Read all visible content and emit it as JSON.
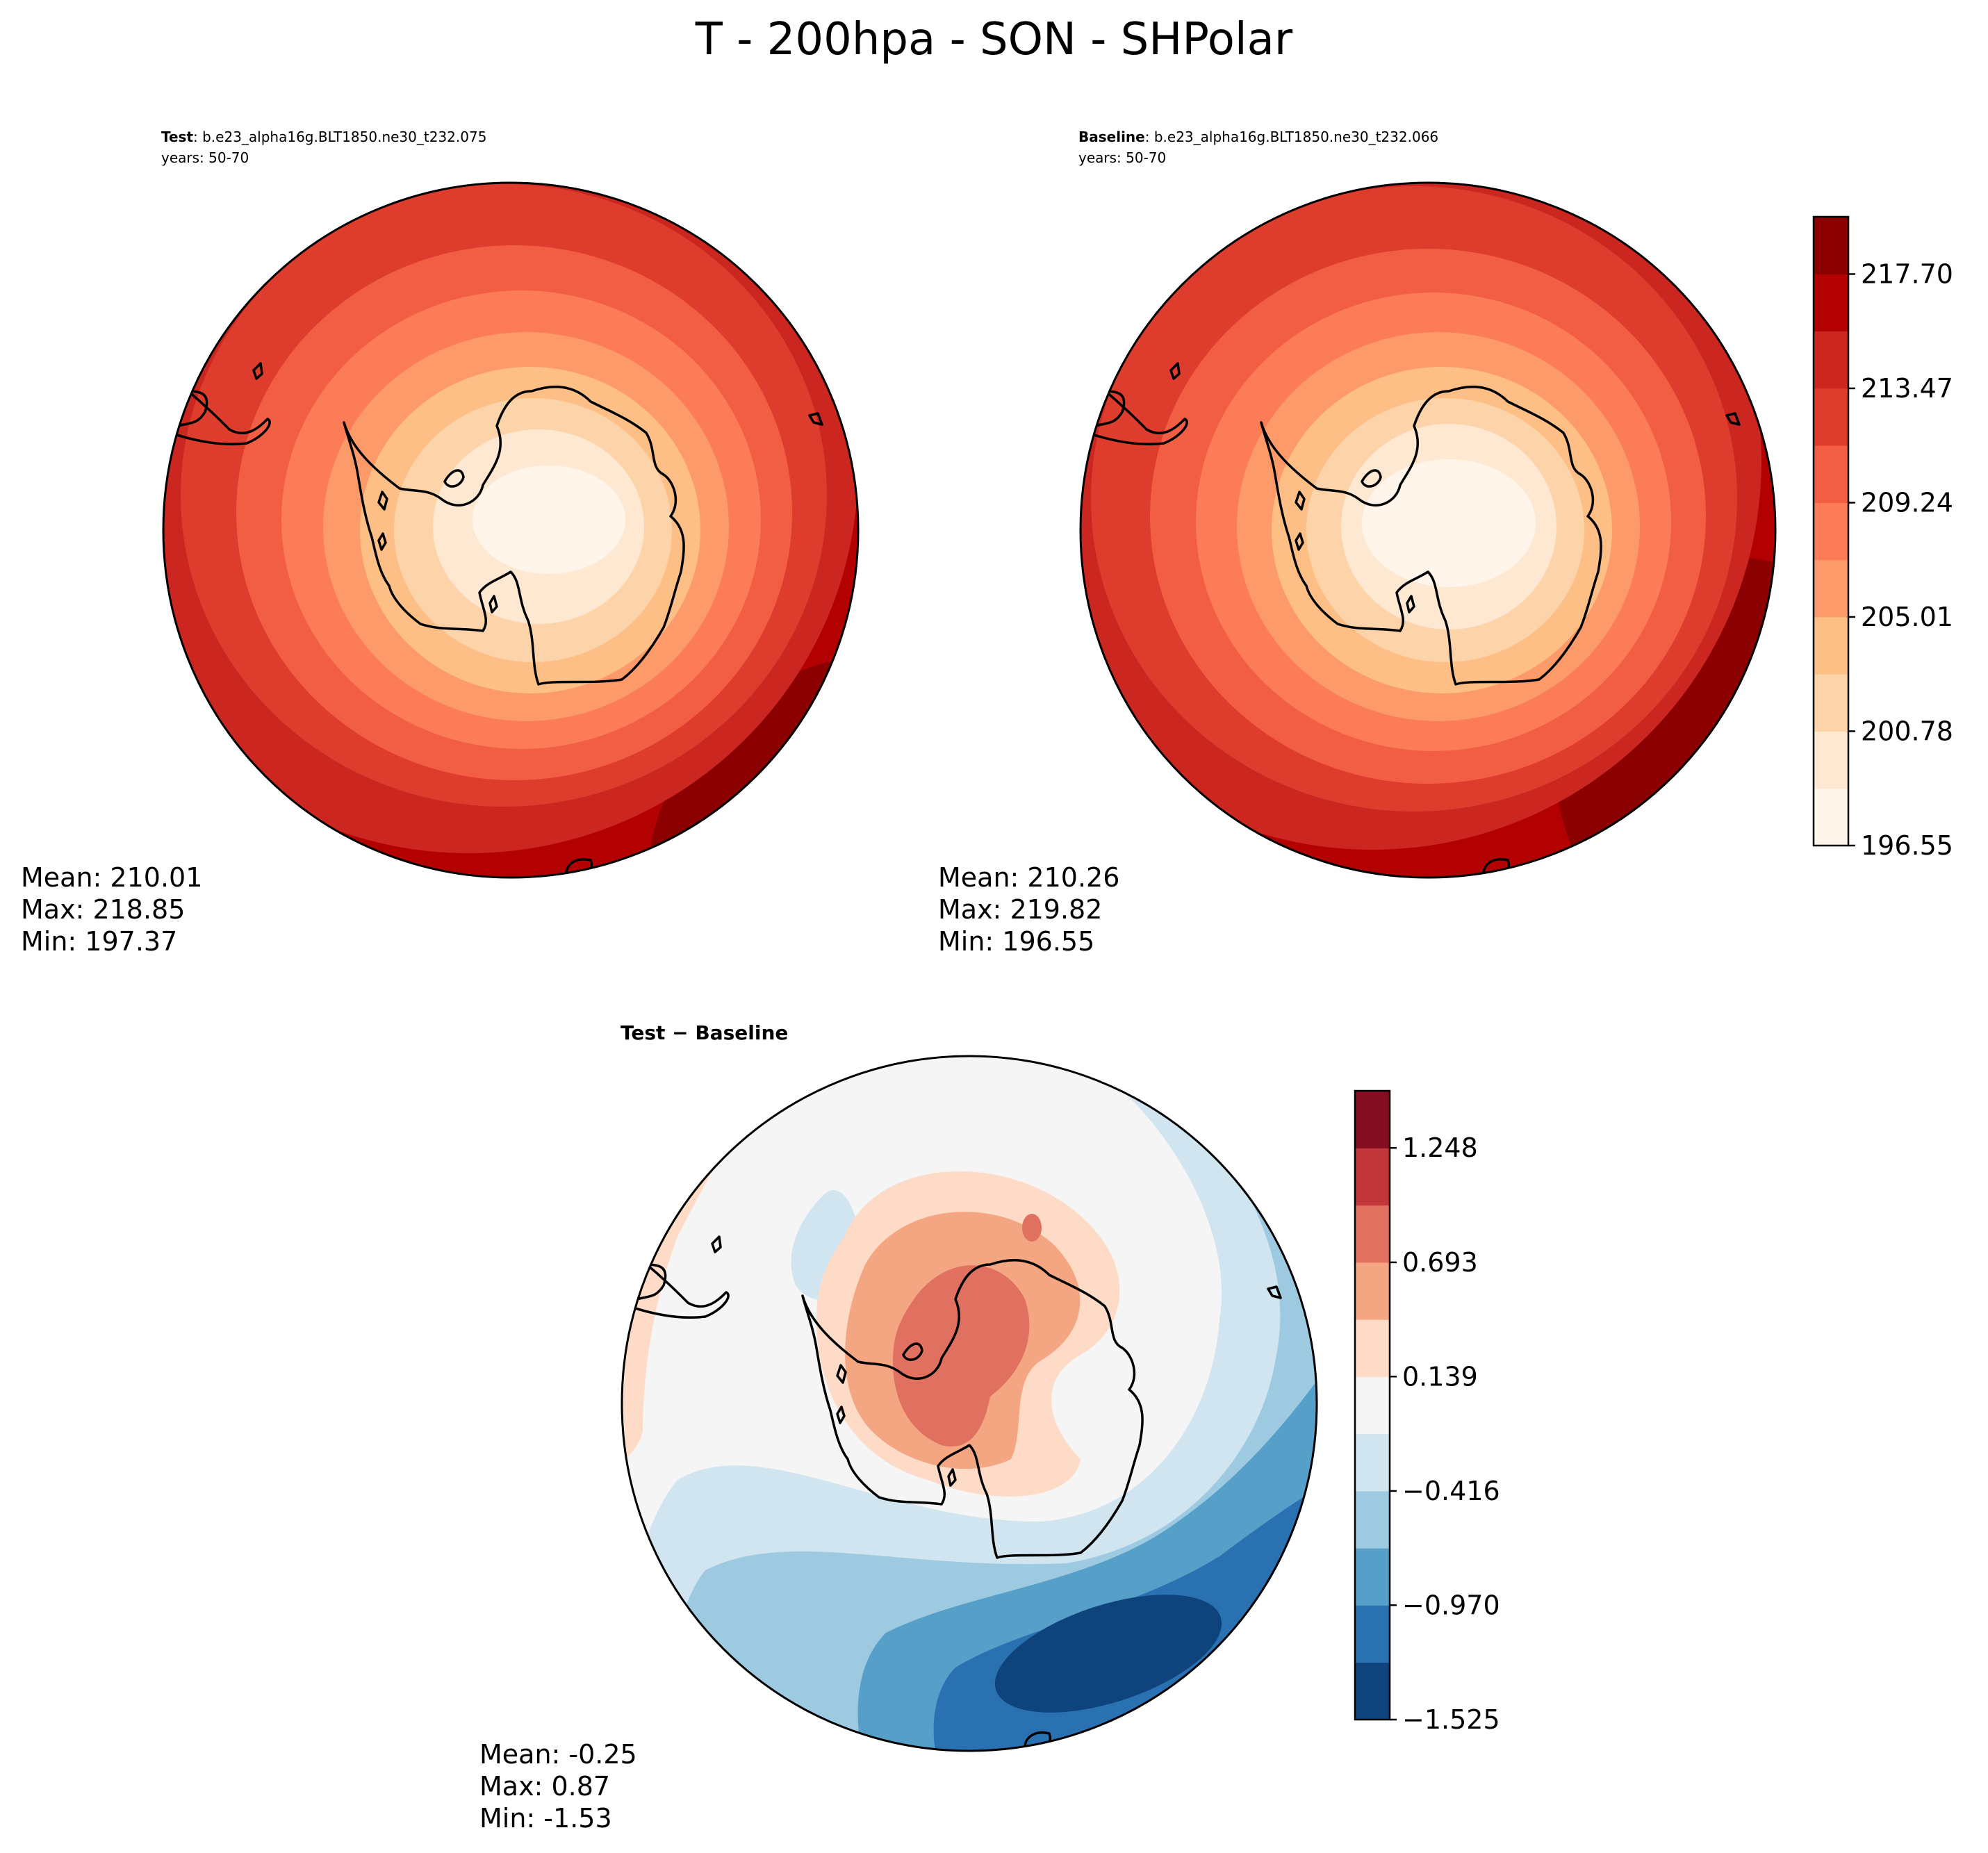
{
  "figure": {
    "title": "T - 200hpa - SON - SHPolar"
  },
  "panels": {
    "test": {
      "label": "Test",
      "case": ": b.e23_alpha16g.BLT1850.ne30_t232.075",
      "years": "years: 50-70",
      "stats": {
        "mean": "Mean: 210.01",
        "max": "Max: 218.85",
        "min": "Min: 197.37"
      }
    },
    "baseline": {
      "label": "Baseline",
      "case": ": b.e23_alpha16g.BLT1850.ne30_t232.066",
      "years": "years: 50-70",
      "stats": {
        "mean": "Mean: 210.26",
        "max": "Max: 219.82",
        "min": "Min: 196.55"
      }
    },
    "diff": {
      "title": "Test − Baseline",
      "stats": {
        "mean": "Mean: -0.25",
        "max": "Max:  0.87",
        "min": "Min: -1.53"
      }
    }
  },
  "chart_data": [
    {
      "type": "heatmap",
      "name": "Test",
      "projection": "south-polar-stereographic",
      "mean": 210.01,
      "max": 218.85,
      "min": 197.37,
      "colormap": "Reds"
    },
    {
      "type": "heatmap",
      "name": "Baseline",
      "projection": "south-polar-stereographic",
      "mean": 210.26,
      "max": 219.82,
      "min": 196.55,
      "colormap": "Reds"
    },
    {
      "type": "heatmap",
      "name": "Test - Baseline",
      "projection": "south-polar-stereographic",
      "mean": -0.25,
      "max": 0.87,
      "min": -1.53,
      "colormap": "RdBu_r"
    }
  ],
  "colorbars": {
    "abs": {
      "levels": [
        196.55,
        198.67,
        200.78,
        202.9,
        205.01,
        207.13,
        209.24,
        211.36,
        213.47,
        215.59,
        217.7,
        219.82
      ],
      "tick_labels": [
        "196.55",
        "200.78",
        "205.01",
        "209.24",
        "213.47",
        "217.70"
      ],
      "colors": [
        "#fff5eb",
        "#fee8d2",
        "#fdd3aa",
        "#fdbf86",
        "#fc9a6a",
        "#fb7c57",
        "#f15e44",
        "#de3c2c",
        "#cb2620",
        "#b30000",
        "#8b0000"
      ]
    },
    "diff": {
      "levels": [
        -1.525,
        -1.248,
        -0.97,
        -0.693,
        -0.416,
        -0.139,
        0.139,
        0.416,
        0.693,
        0.97,
        1.248,
        1.525
      ],
      "tick_labels": [
        "−1.525",
        "−0.970",
        "−0.416",
        "0.139",
        "0.693",
        "1.248"
      ],
      "colors": [
        "#0f437b",
        "#2a71b2",
        "#569fc9",
        "#9ecae1",
        "#d1e5f0",
        "#f5f5f5",
        "#fddbc7",
        "#f4a582",
        "#e07060",
        "#c2383a",
        "#850d22"
      ]
    }
  }
}
